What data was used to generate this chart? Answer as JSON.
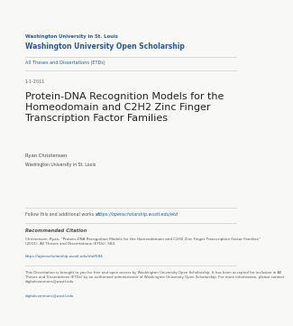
{
  "bg_color": "#f8f8f6",
  "header_line1": "Washington University in St. Louis",
  "header_line2": "Washington University Open Scholarship",
  "header_color": "#2a5a8c",
  "subheader": "All Theses and Dissertations (ETDs)",
  "subheader_color": "#2a6090",
  "date": "1-1-2011",
  "date_color": "#666666",
  "title": "Protein-DNA Recognition Models for the\nHomeodomain and C2H2 Zinc Finger\nTranscription Factor Families",
  "title_color": "#222222",
  "author": "Ryan Christensen",
  "institution": "Washington University in St. Louis",
  "author_color": "#444444",
  "follow_text": "Follow this and additional works at: ",
  "follow_link": "https://openscholarship.wustl.edu/etd",
  "follow_color": "#555555",
  "link_color": "#2a6090",
  "rec_citation_header": "Recommended Citation",
  "rec_citation_body": "Christensen, Ryan, \"Protein-DNA Recognition Models for the Homeodomain and C2H2 Zinc Finger Transcription Factor Families\"\n(2011). All Theses and Dissertations (ETDs). 584.",
  "rec_link": "https://openscholarship.wustl.edu/etd/584",
  "disclaimer": "This Dissertation is brought to you for free and open access by Washington University Open Scholarship. It has been accepted for inclusion in All\nTheses and Dissertations (ETDs) by an authorized administrator of Washington University Open Scholarship. For more information, please contact\ndigitalcommons@wustl.edu.",
  "disclaimer_link": "digitalcommons@wustl.edu",
  "small_color": "#555555",
  "line_color": "#cccccc"
}
